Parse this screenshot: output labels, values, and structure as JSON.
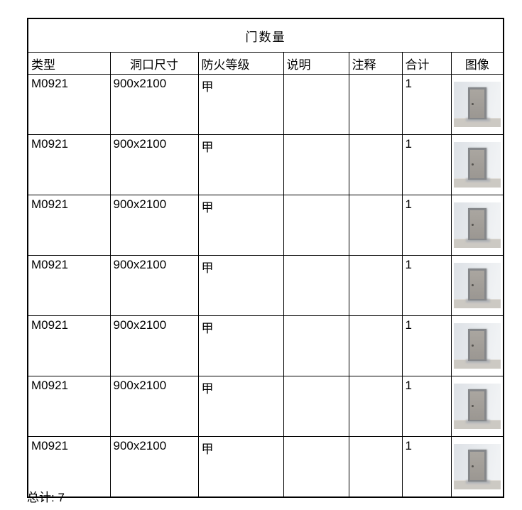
{
  "title": "门数量",
  "columns": [
    "类型",
    "洞口尺寸",
    "防火等级",
    "说明",
    "注释",
    "合计",
    "图像"
  ],
  "column_fields": [
    "type",
    "size",
    "fire_rating",
    "description",
    "comments",
    "count"
  ],
  "column_names": [
    "type",
    "opening-size",
    "fire-rating",
    "description",
    "comments",
    "count",
    "image"
  ],
  "rows": [
    {
      "type": "M0921",
      "size": "900x2100",
      "fire_rating": "甲",
      "description": "",
      "comments": "",
      "count": "1",
      "image": "door-render"
    },
    {
      "type": "M0921",
      "size": "900x2100",
      "fire_rating": "甲",
      "description": "",
      "comments": "",
      "count": "1",
      "image": "door-render"
    },
    {
      "type": "M0921",
      "size": "900x2100",
      "fire_rating": "甲",
      "description": "",
      "comments": "",
      "count": "1",
      "image": "door-render"
    },
    {
      "type": "M0921",
      "size": "900x2100",
      "fire_rating": "甲",
      "description": "",
      "comments": "",
      "count": "1",
      "image": "door-render"
    },
    {
      "type": "M0921",
      "size": "900x2100",
      "fire_rating": "甲",
      "description": "",
      "comments": "",
      "count": "1",
      "image": "door-render"
    },
    {
      "type": "M0921",
      "size": "900x2100",
      "fire_rating": "甲",
      "description": "",
      "comments": "",
      "count": "1",
      "image": "door-render"
    },
    {
      "type": "M0921",
      "size": "900x2100",
      "fire_rating": "甲",
      "description": "",
      "comments": "",
      "count": "1",
      "image": "door-render"
    }
  ],
  "total": {
    "label": "总计",
    "separator": ": ",
    "value": "7"
  },
  "colors": {
    "border": "#000000",
    "text": "#000000",
    "background": "#ffffff",
    "door_wall": "#dde1e6",
    "door_wall_light": "#f0f2f4",
    "door_floor": "#ccc9c3",
    "door_floor_edge": "#dedbd6",
    "door_frame": "#85878a",
    "door_leaf": "#aaa6a0",
    "door_leaf_dark": "#9b9792",
    "door_handle": "#55534f",
    "door_shadow": "#b4b6b9"
  }
}
